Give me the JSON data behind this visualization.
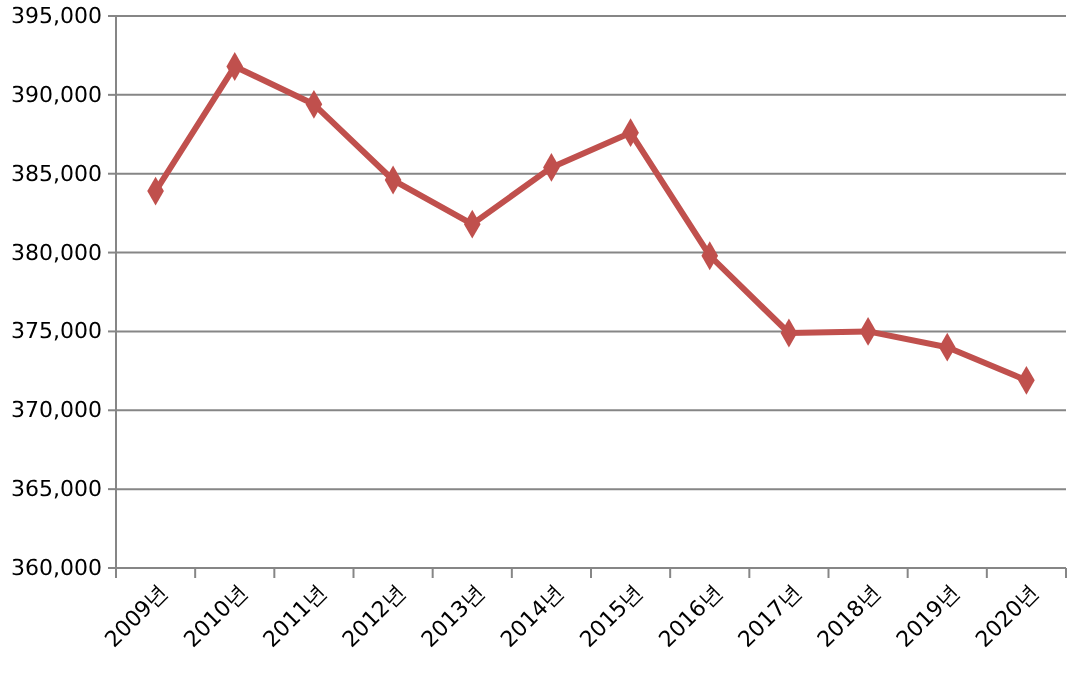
{
  "chart_data": {
    "type": "line",
    "categories": [
      "2009년",
      "2010년",
      "2011년",
      "2012년",
      "2013년",
      "2014년",
      "2015년",
      "2016년",
      "2017년",
      "2018년",
      "2019년",
      "2020년"
    ],
    "series": [
      {
        "color": "#c0504d",
        "values": [
          383900,
          391800,
          389400,
          384600,
          381800,
          385400,
          387600,
          379800,
          374900,
          375000,
          374000,
          371900
        ]
      }
    ],
    "ylim": [
      360000,
      395000
    ],
    "yticks": [
      {
        "value": 360000,
        "label": "360,000"
      },
      {
        "value": 365000,
        "label": "365,000"
      },
      {
        "value": 370000,
        "label": "370,000"
      },
      {
        "value": 375000,
        "label": "375,000"
      },
      {
        "value": 380000,
        "label": "380,000"
      },
      {
        "value": 385000,
        "label": "385,000"
      },
      {
        "value": 390000,
        "label": "390,000"
      },
      {
        "value": 395000,
        "label": "395,000"
      }
    ],
    "grid": "y",
    "marker": "diamond",
    "line_style": "solid",
    "legend": false
  }
}
